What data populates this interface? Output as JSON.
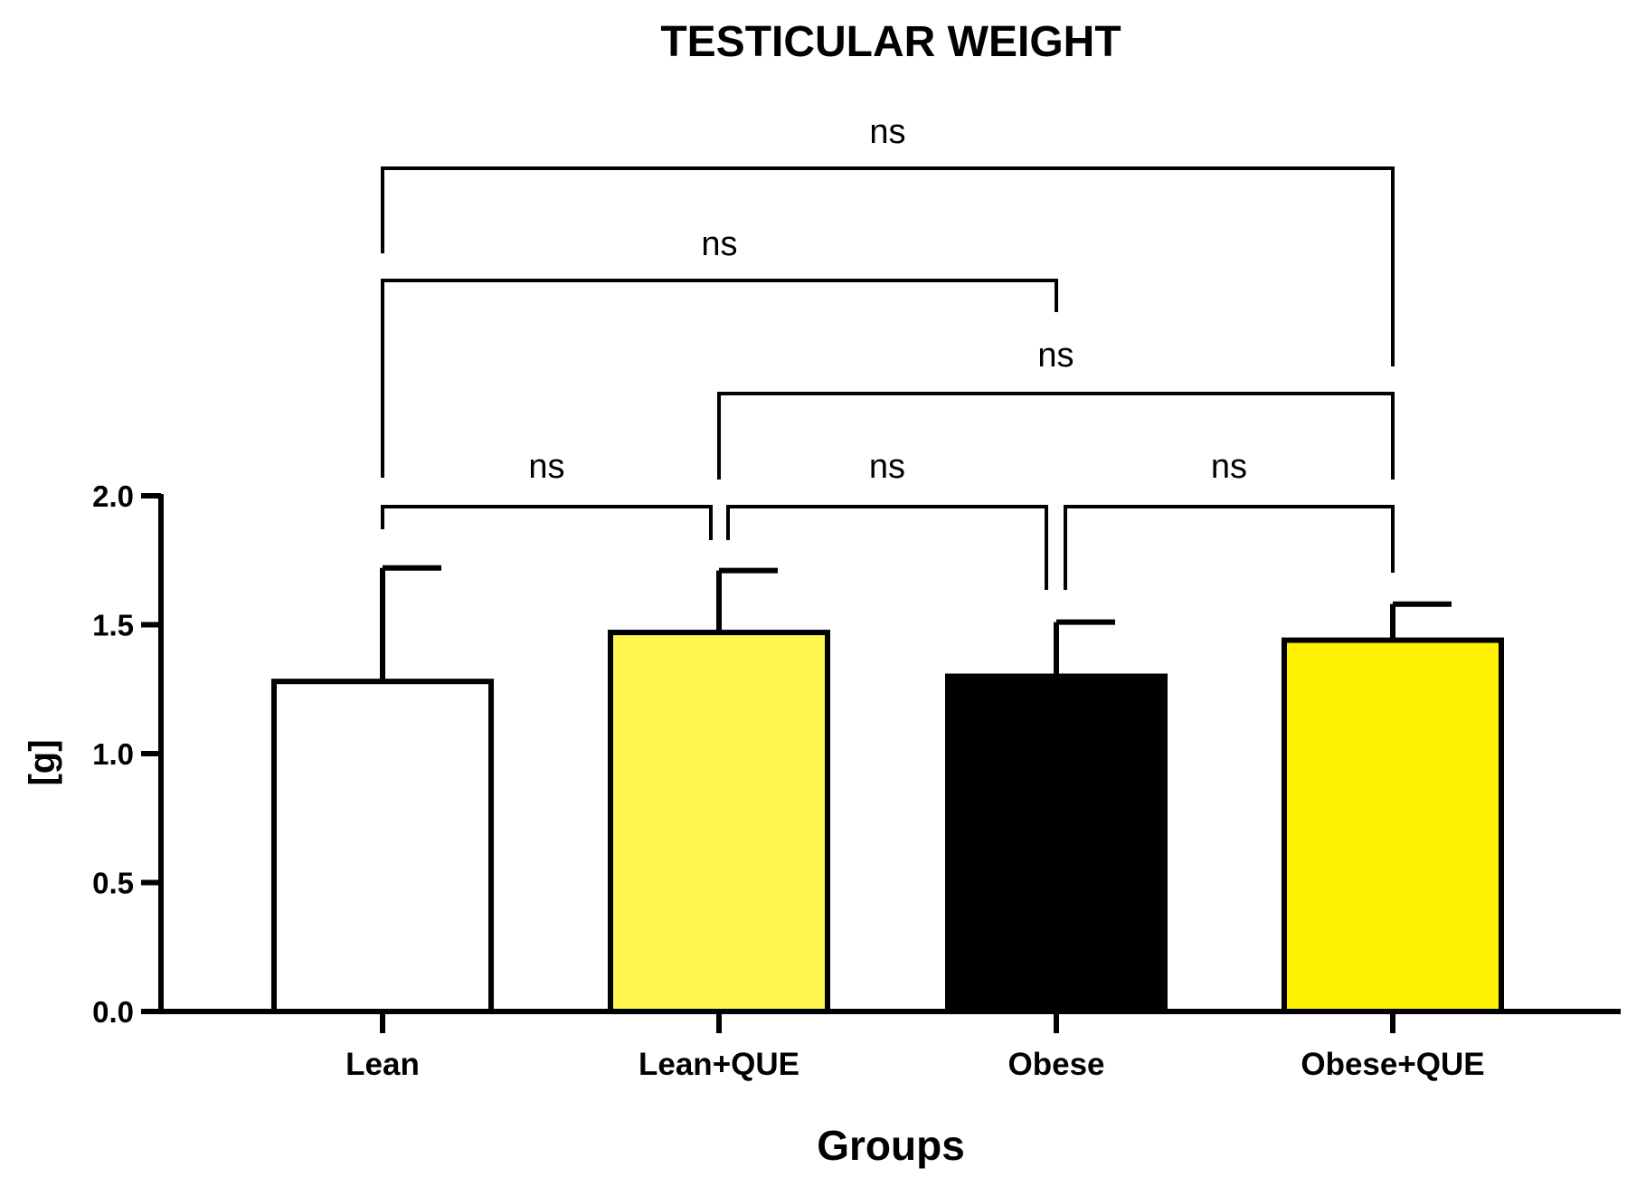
{
  "chart_data": {
    "type": "bar",
    "title": "TESTICULAR WEIGHT",
    "xlabel": "Groups",
    "ylabel": "[g]",
    "ylim": [
      0,
      2.0
    ],
    "yticks": [
      "0.0",
      "0.5",
      "1.0",
      "1.5",
      "2.0"
    ],
    "categories": [
      "Lean",
      "Lean+QUE",
      "Obese",
      "Obese+QUE"
    ],
    "values": [
      1.28,
      1.47,
      1.3,
      1.44
    ],
    "error_upper": [
      0.44,
      0.24,
      0.21,
      0.14
    ],
    "bar_colors": [
      "#ffffff",
      "#fff650",
      "#000000",
      "#fff200"
    ],
    "grid": false,
    "comparisons": [
      {
        "from": 0,
        "to": 1,
        "label": "ns"
      },
      {
        "from": 1,
        "to": 2,
        "label": "ns"
      },
      {
        "from": 2,
        "to": 3,
        "label": "ns"
      },
      {
        "from": 1,
        "to": 3,
        "label": "ns"
      },
      {
        "from": 0,
        "to": 2,
        "label": "ns"
      },
      {
        "from": 0,
        "to": 3,
        "label": "ns"
      }
    ]
  }
}
